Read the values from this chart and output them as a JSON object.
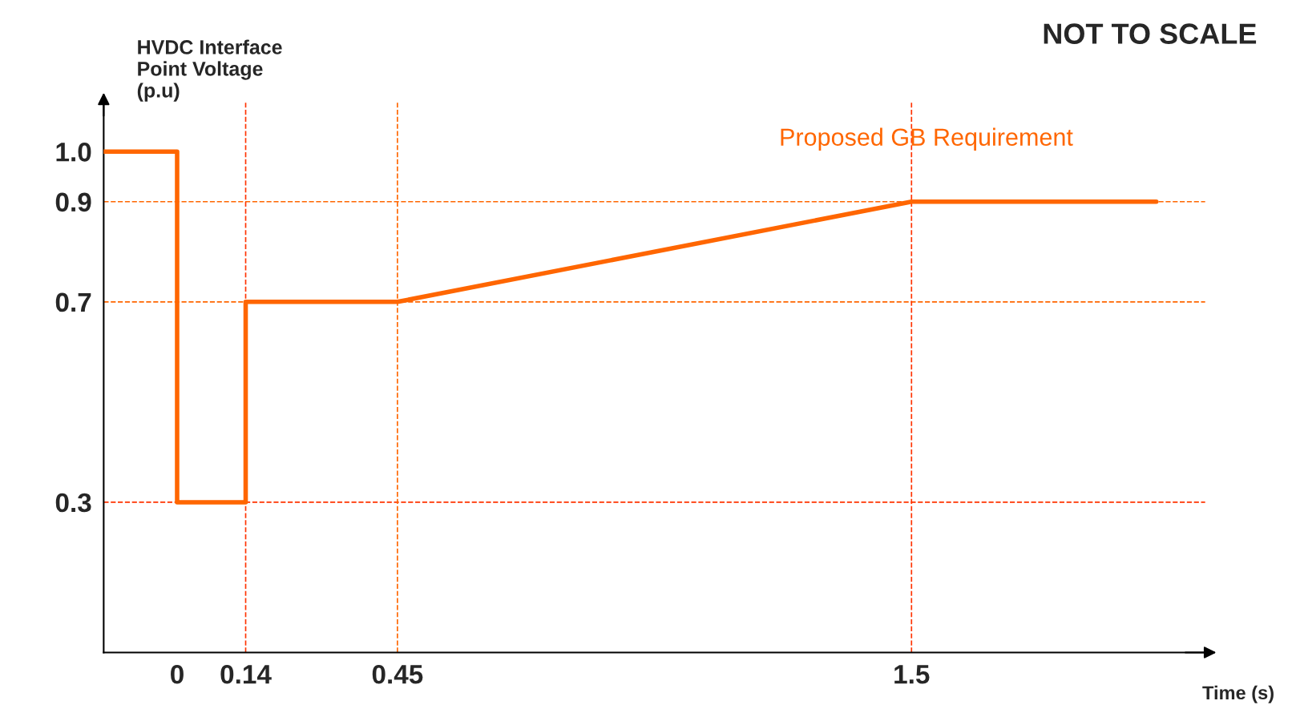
{
  "chart_data": {
    "type": "line",
    "annotations": [
      "NOT TO SCALE"
    ],
    "xlabel": "Time (s)",
    "ylabel": "HVDC Interface\nPoint Voltage\n(p.u)",
    "series": [
      {
        "name": "Proposed GB Requirement",
        "color": "#ff6600",
        "x": [
          -0.15,
          0,
          0,
          0.14,
          0.14,
          0.45,
          1.5,
          2.0
        ],
        "values": [
          1.0,
          1.0,
          0.3,
          0.3,
          0.7,
          0.7,
          0.9,
          0.9
        ]
      }
    ],
    "xlim": [
      -0.15,
      2.1
    ],
    "ylim": [
      0,
      1.1
    ],
    "xticks": [
      0,
      0.14,
      0.45,
      1.5
    ],
    "yticks": [
      0.3,
      0.7,
      0.9,
      {
        "value": 1.0,
        "label": "1.0"
      }
    ],
    "ref_lines": [
      {
        "axis": "y",
        "value": 0.9,
        "color": "#ff6600",
        "line_style": "dashed"
      },
      {
        "axis": "y",
        "value": 0.7,
        "color": "#ff6600",
        "line_style": "dashed"
      },
      {
        "axis": "y",
        "value": 0.3,
        "color": "#ff3300",
        "line_style": "dashed"
      },
      {
        "axis": "x",
        "value": 0.14,
        "color": "#ff3300",
        "line_style": "dashed"
      },
      {
        "axis": "x",
        "value": 0.45,
        "color": "#ff6600",
        "line_style": "dashed"
      },
      {
        "axis": "x",
        "value": 1.5,
        "color": "#ff3300",
        "line_style": "dashed"
      }
    ],
    "grid": false,
    "legend": false,
    "marker": "none",
    "line_style": "solid"
  }
}
